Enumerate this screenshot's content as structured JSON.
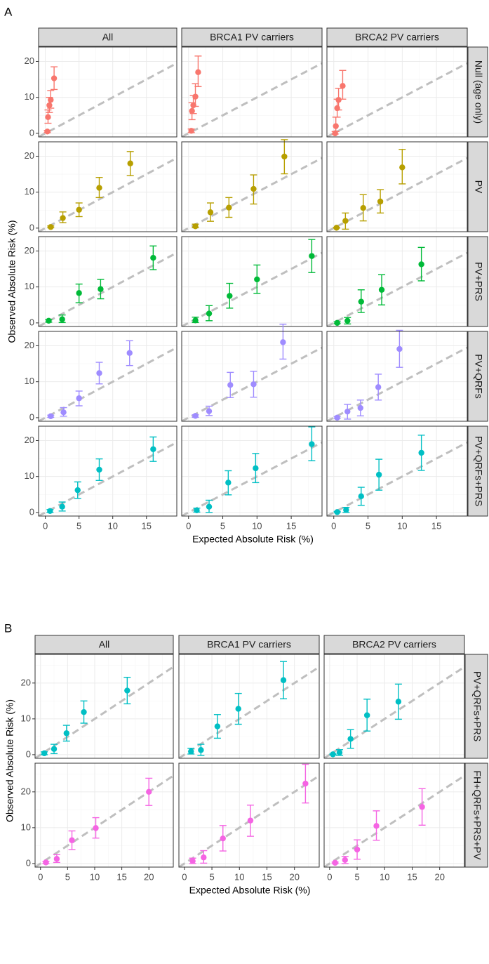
{
  "chart_data": [
    {
      "id": "A",
      "type": "scatter",
      "label": "A",
      "xlabel": "Expected Absolute Risk (%)",
      "ylabel": "Observed Absolute Risk (%)",
      "xlim": [
        -1,
        19.5
      ],
      "ylim": [
        -1,
        24
      ],
      "xticks": [
        0,
        5,
        10,
        15
      ],
      "yticks": [
        0,
        10,
        20
      ],
      "grid": true,
      "reference_line": "y = x (dashed grey)",
      "columns": [
        "All",
        "BRCA1 PV carriers",
        "BRCA2 PV carriers"
      ],
      "rows": [
        {
          "label": "Null (age only)",
          "color": "#F8766D",
          "panels": [
            {
              "x": [
                0.3,
                0.4,
                0.6,
                0.8,
                1.3
              ],
              "y": [
                0.5,
                4.5,
                7.8,
                9.3,
                15.3
              ],
              "ylo": [
                0.2,
                2.8,
                5.8,
                7.0,
                12.2
              ],
              "yhi": [
                0.8,
                6.5,
                10.0,
                11.9,
                18.5
              ]
            },
            {
              "x": [
                0.4,
                0.5,
                0.7,
                1.0,
                1.4
              ],
              "y": [
                0.7,
                6.2,
                7.8,
                10.2,
                17.0
              ],
              "ylo": [
                0.2,
                3.8,
                5.5,
                7.5,
                13.0
              ],
              "yhi": [
                1.2,
                8.5,
                10.5,
                13.8,
                21.5
              ]
            },
            {
              "x": [
                0.2,
                0.3,
                0.5,
                0.7,
                1.3
              ],
              "y": [
                0.0,
                2.0,
                7.0,
                9.3,
                13.2
              ],
              "ylo": [
                -0.2,
                0.5,
                4.5,
                6.5,
                9.5
              ],
              "yhi": [
                0.5,
                4.5,
                9.5,
                12.5,
                17.5
              ]
            }
          ]
        },
        {
          "label": "PV",
          "color": "#B79F00",
          "panels": [
            {
              "x": [
                0.8,
                2.6,
                5.0,
                8.0,
                12.6
              ],
              "y": [
                0.3,
                2.8,
                5.1,
                11.2,
                18.0
              ],
              "ylo": [
                0.1,
                1.5,
                3.2,
                8.5,
                14.6
              ],
              "yhi": [
                0.6,
                4.5,
                7.0,
                14.1,
                21.3
              ]
            },
            {
              "x": [
                1.0,
                3.2,
                5.9,
                9.5,
                14.0
              ],
              "y": [
                0.5,
                4.4,
                5.7,
                10.9,
                19.9
              ],
              "ylo": [
                0.1,
                1.9,
                3.0,
                6.7,
                15.1
              ],
              "yhi": [
                1.1,
                7.0,
                8.5,
                14.8,
                24.6
              ]
            },
            {
              "x": [
                0.4,
                1.7,
                4.3,
                6.8,
                10.0
              ],
              "y": [
                0.1,
                2.0,
                5.6,
                7.4,
                16.9
              ],
              "ylo": [
                0.0,
                -0.3,
                2.0,
                4.2,
                12.3
              ],
              "yhi": [
                0.2,
                4.2,
                9.3,
                10.7,
                21.9
              ]
            }
          ]
        },
        {
          "label": "PV+PRS",
          "color": "#00BA38",
          "panels": [
            {
              "x": [
                0.5,
                2.5,
                5.0,
                8.2,
                16.0
              ],
              "y": [
                0.6,
                1.0,
                8.3,
                9.4,
                18.1
              ],
              "ylo": [
                0.2,
                0.1,
                5.6,
                6.7,
                14.8
              ],
              "yhi": [
                0.9,
                2.2,
                10.8,
                12.1,
                21.4
              ]
            },
            {
              "x": [
                1.0,
                3.0,
                6.0,
                10.0,
                18.0
              ],
              "y": [
                0.7,
                2.6,
                7.5,
                12.1,
                18.6
              ],
              "ylo": [
                0.1,
                0.6,
                4.1,
                8.2,
                14.0
              ],
              "yhi": [
                1.6,
                4.8,
                11.0,
                16.1,
                23.2
              ]
            },
            {
              "x": [
                0.5,
                2.0,
                4.0,
                7.0,
                12.8
              ],
              "y": [
                0.0,
                0.6,
                5.9,
                9.2,
                16.3
              ],
              "ylo": [
                -0.2,
                -0.3,
                2.9,
                5.0,
                11.7
              ],
              "yhi": [
                0.3,
                1.5,
                9.2,
                13.4,
                21.0
              ]
            }
          ]
        },
        {
          "label": "PV+QRFs",
          "color": "#9F8CFF",
          "panels": [
            {
              "x": [
                0.8,
                2.7,
                5.0,
                8.0,
                12.5
              ],
              "y": [
                0.4,
                1.5,
                5.4,
                12.4,
                18.0
              ],
              "ylo": [
                0.1,
                0.4,
                3.3,
                9.4,
                14.5
              ],
              "yhi": [
                0.7,
                2.8,
                7.4,
                15.4,
                21.4
              ]
            },
            {
              "x": [
                1.0,
                3.0,
                6.1,
                9.5,
                13.8
              ],
              "y": [
                0.5,
                1.8,
                9.1,
                9.3,
                21.0
              ],
              "ylo": [
                0.1,
                0.6,
                5.6,
                5.7,
                16.3
              ],
              "yhi": [
                0.8,
                3.2,
                12.6,
                12.9,
                26.0
              ]
            },
            {
              "x": [
                0.5,
                2.0,
                3.9,
                6.5,
                9.6
              ],
              "y": [
                0.0,
                1.7,
                2.7,
                8.5,
                19.1
              ],
              "ylo": [
                -0.2,
                -0.4,
                0.5,
                4.9,
                14.0
              ],
              "yhi": [
                0.3,
                3.7,
                4.9,
                12.1,
                24.3
              ]
            }
          ]
        },
        {
          "label": "PV+QRFs+PRS",
          "color": "#00BFC4",
          "panels": [
            {
              "x": [
                0.7,
                2.5,
                4.8,
                8.0,
                16.0
              ],
              "y": [
                0.4,
                1.6,
                6.2,
                11.9,
                17.6
              ],
              "ylo": [
                0.0,
                0.4,
                3.9,
                8.9,
                14.2
              ],
              "yhi": [
                0.8,
                2.9,
                8.5,
                14.9,
                21.0
              ]
            },
            {
              "x": [
                1.2,
                3.0,
                5.8,
                9.8,
                18.0
              ],
              "y": [
                0.6,
                1.6,
                8.3,
                12.3,
                19.0
              ],
              "ylo": [
                0.1,
                0.0,
                4.9,
                8.3,
                14.4
              ],
              "yhi": [
                1.2,
                3.4,
                11.6,
                16.4,
                23.8
              ]
            },
            {
              "x": [
                0.5,
                1.8,
                4.0,
                6.6,
                12.8
              ],
              "y": [
                0.1,
                0.7,
                4.5,
                10.5,
                16.6
              ],
              "ylo": [
                0.0,
                0.0,
                2.0,
                6.2,
                11.7
              ],
              "yhi": [
                0.3,
                1.4,
                7.0,
                14.8,
                21.5
              ]
            }
          ]
        }
      ]
    },
    {
      "id": "B",
      "type": "scatter",
      "label": "B",
      "xlabel": "Expected Absolute Risk (%)",
      "ylabel": "Observed Absolute Risk (%)",
      "xlim": [
        -1,
        24.5
      ],
      "ylim": [
        -1,
        28
      ],
      "xticks": [
        0,
        5,
        10,
        15,
        20
      ],
      "yticks": [
        0,
        10,
        20
      ],
      "grid": true,
      "reference_line": "y = x (dashed grey)",
      "columns": [
        "All",
        "BRCA1 PV carriers",
        "BRCA2 PV carriers"
      ],
      "rows": [
        {
          "label": "PV+QRFs+PRS",
          "color": "#00BFC4",
          "panels": [
            {
              "x": [
                0.7,
                2.5,
                4.8,
                8.0,
                16.0
              ],
              "y": [
                0.4,
                1.6,
                6.0,
                11.9,
                17.9
              ],
              "ylo": [
                0.0,
                0.3,
                3.8,
                8.8,
                14.2
              ],
              "yhi": [
                0.8,
                2.9,
                8.2,
                15.0,
                21.6
              ]
            },
            {
              "x": [
                1.2,
                3.0,
                6.0,
                9.8,
                18.0
              ],
              "y": [
                0.9,
                1.3,
                7.9,
                12.8,
                20.8
              ],
              "ylo": [
                0.2,
                -0.2,
                4.6,
                8.5,
                15.6
              ],
              "yhi": [
                1.8,
                2.9,
                11.2,
                17.1,
                26.0
              ]
            },
            {
              "x": [
                0.6,
                1.8,
                3.8,
                6.8,
                12.5
              ],
              "y": [
                0.1,
                0.6,
                4.4,
                11.0,
                14.8
              ],
              "ylo": [
                0.0,
                -0.2,
                1.8,
                6.6,
                9.9
              ],
              "yhi": [
                0.2,
                1.4,
                7.0,
                15.5,
                19.7
              ]
            }
          ]
        },
        {
          "label": "FH+QRFs+PRS+PV",
          "color": "#F564E3",
          "panels": [
            {
              "x": [
                1.0,
                3.0,
                5.8,
                10.2,
                20.0
              ],
              "y": [
                0.3,
                1.3,
                6.5,
                9.9,
                20.0
              ],
              "ylo": [
                0.0,
                0.3,
                3.9,
                7.1,
                16.2
              ],
              "yhi": [
                0.6,
                2.5,
                9.1,
                12.8,
                23.8
              ]
            },
            {
              "x": [
                1.5,
                3.5,
                7.0,
                12.0,
                22.0
              ],
              "y": [
                0.7,
                1.7,
                7.0,
                12.0,
                22.3
              ],
              "ylo": [
                0.0,
                0.1,
                3.5,
                7.6,
                16.9
              ],
              "yhi": [
                1.5,
                3.6,
                10.6,
                16.3,
                27.7
              ]
            },
            {
              "x": [
                1.0,
                2.8,
                5.0,
                8.5,
                16.8
              ],
              "y": [
                0.2,
                1.0,
                3.9,
                10.5,
                15.8
              ],
              "ylo": [
                0.0,
                0.0,
                1.2,
                6.5,
                10.7
              ],
              "yhi": [
                0.4,
                2.0,
                6.6,
                14.7,
                20.9
              ]
            }
          ]
        }
      ]
    }
  ]
}
